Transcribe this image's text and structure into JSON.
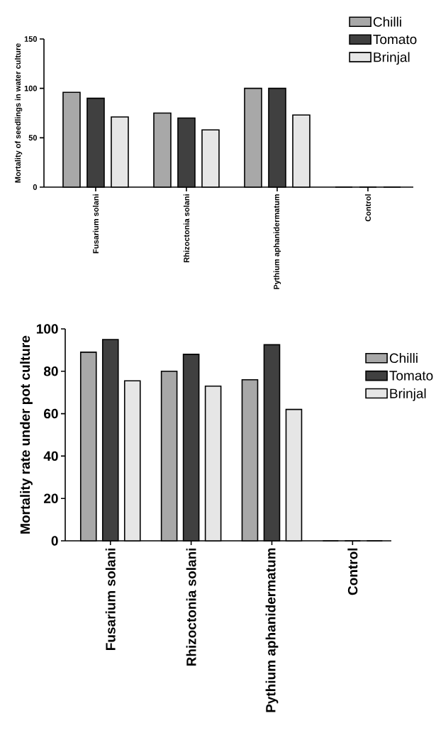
{
  "chart_data": [
    {
      "type": "bar",
      "ylabel": "Mortality of seedlings in water culture",
      "categories": [
        "Fusarium solani",
        "Rhizoctonia solani",
        "Pythium aphanidermatum",
        "Control"
      ],
      "series": [
        {
          "name": "Chilli",
          "color": "#a8a8a8",
          "values": [
            96,
            75,
            100,
            0
          ]
        },
        {
          "name": "Tomato",
          "color": "#404040",
          "values": [
            90,
            70,
            100,
            0
          ]
        },
        {
          "name": "Brinjal",
          "color": "#e6e6e6",
          "values": [
            71,
            58,
            73,
            0
          ]
        }
      ],
      "ylim": [
        0,
        150
      ],
      "yticks": [
        0,
        50,
        100,
        150
      ],
      "legend": "top right",
      "grid": false
    },
    {
      "type": "bar",
      "ylabel": "Mortality rate under pot culture",
      "categories": [
        "Fusarium solani",
        "Rhizoctonia solani",
        "Pythium aphanidermatum",
        "Control"
      ],
      "series": [
        {
          "name": "Chilli",
          "color": "#a8a8a8",
          "values": [
            89,
            80,
            76,
            0
          ]
        },
        {
          "name": "Tomato",
          "color": "#404040",
          "values": [
            95,
            88,
            92.5,
            0
          ]
        },
        {
          "name": "Brinjal",
          "color": "#e6e6e6",
          "values": [
            75.5,
            73,
            62,
            0
          ]
        }
      ],
      "ylim": [
        0,
        100
      ],
      "yticks": [
        0,
        20,
        40,
        60,
        80,
        100
      ],
      "legend": "top right",
      "grid": false
    }
  ]
}
